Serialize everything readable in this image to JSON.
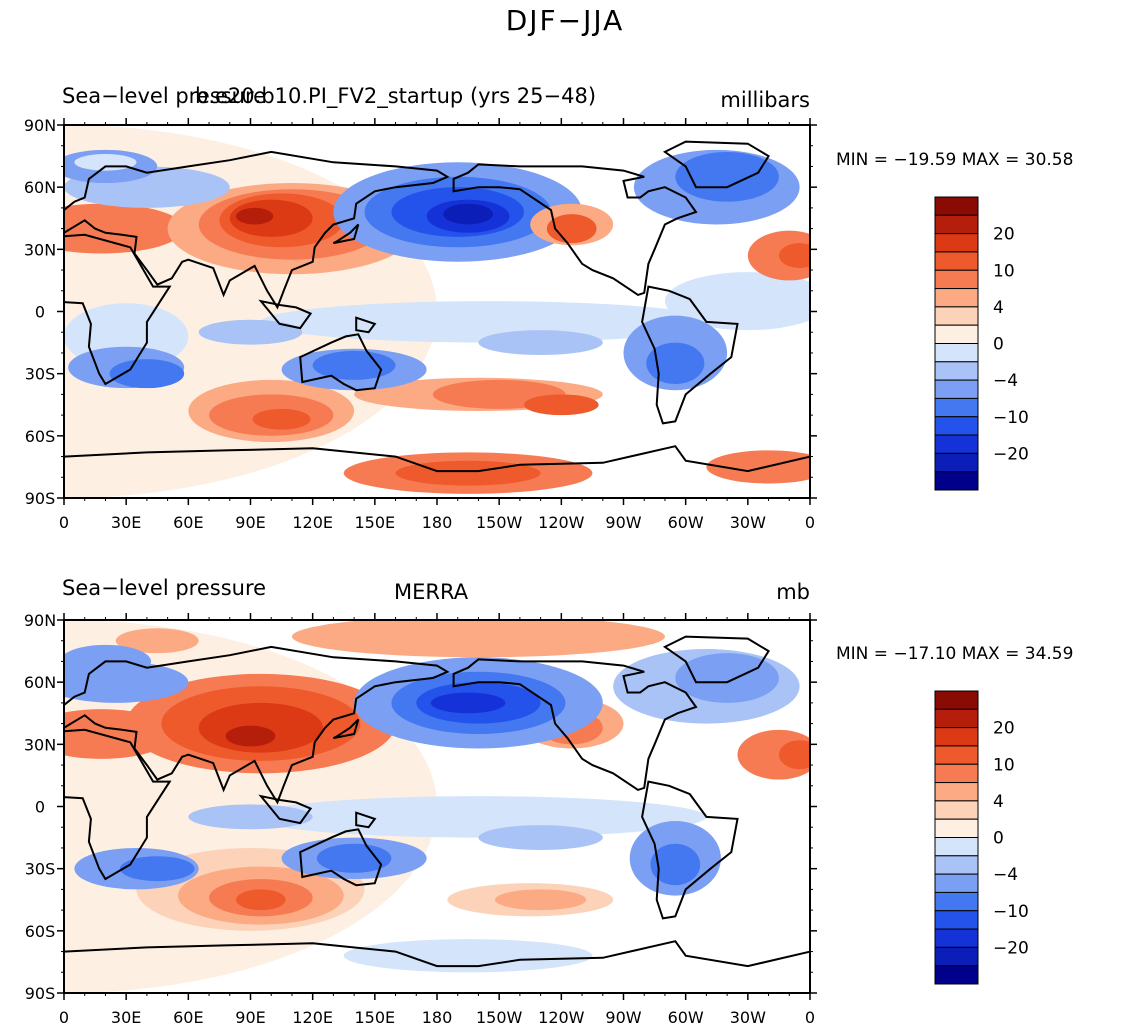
{
  "main_title": "DJF−JJA",
  "colors": {
    "levels": [
      "#00008b",
      "#0b1fb8",
      "#1432d7",
      "#2453ec",
      "#4478f0",
      "#7b9ff3",
      "#a9c3f6",
      "#d4e4fa",
      "#fdf0e2",
      "#fcd2b8",
      "#fbaa84",
      "#f77b52",
      "#ef5a2c",
      "#dc3a14",
      "#b41e0a",
      "#8a0a04"
    ]
  },
  "chart_data": [
    {
      "type": "heatmap",
      "title_left": "Sea−level pressure",
      "title_center": "b.e20.b10.PI_FV2_startup (yrs 25−48)",
      "title_right": "millibars",
      "min_max": "MIN = −19.59  MAX =   30.58",
      "ylabels": [
        "90N",
        "60N",
        "30N",
        "0",
        "30S",
        "60S",
        "90S"
      ],
      "xlabels": [
        "0",
        "30E",
        "60E",
        "90E",
        "120E",
        "150E",
        "180",
        "150W",
        "120W",
        "90W",
        "60W",
        "30W",
        "0"
      ],
      "colorbar_labels": [
        "20",
        "10",
        "4",
        "0",
        "−4",
        "−10",
        "−20"
      ],
      "lon_range": [
        0,
        360
      ],
      "lat_range": [
        -90,
        90
      ]
    },
    {
      "type": "heatmap",
      "title_left": "Sea−level pressure",
      "title_center": "MERRA",
      "title_right": "mb",
      "min_max": "MIN = −17.10  MAX =   34.59",
      "ylabels": [
        "90N",
        "60N",
        "30N",
        "0",
        "30S",
        "60S",
        "90S"
      ],
      "xlabels": [
        "0",
        "30E",
        "60E",
        "90E",
        "120E",
        "150E",
        "180",
        "150W",
        "120W",
        "90W",
        "60W",
        "30W",
        "0"
      ],
      "colorbar_labels": [
        "20",
        "10",
        "4",
        "0",
        "−4",
        "−10",
        "−20"
      ],
      "lon_range": [
        0,
        360
      ],
      "lat_range": [
        -90,
        90
      ]
    }
  ]
}
